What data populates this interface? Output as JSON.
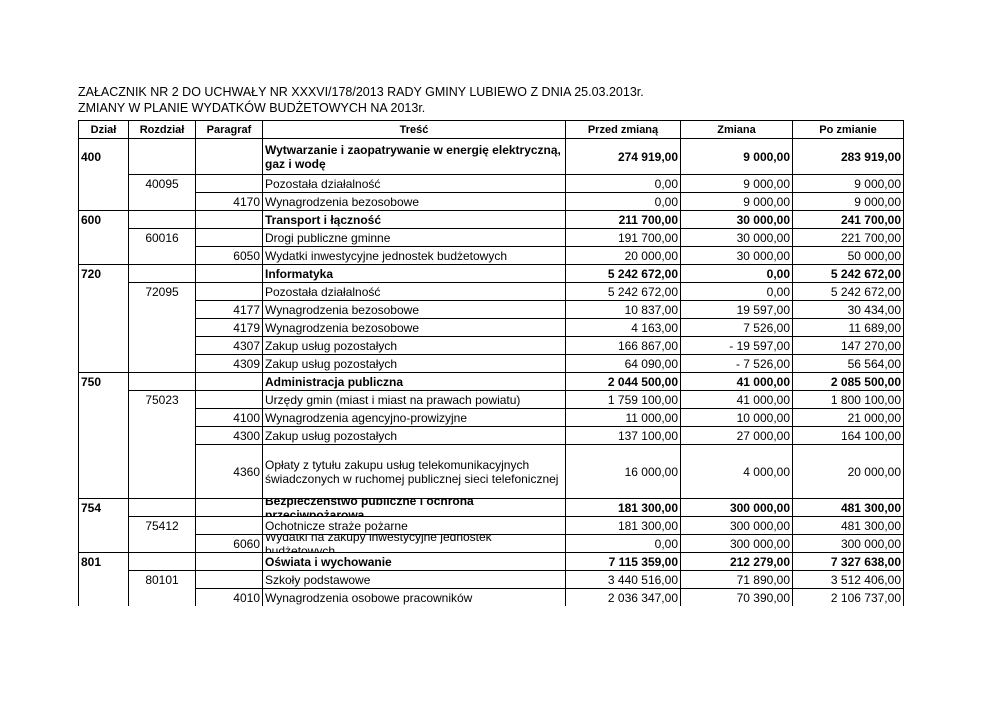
{
  "header": {
    "title": "ZAŁACZNIK NR 2 DO UCHWAŁY NR XXXVI/178/2013 RADY GMINY LUBIEWO Z DNIA 25.03.2013r.",
    "subtitle": "ZMIANY W PLANIE WYDATKÓW BUDŻETOWYCH NA 2013r."
  },
  "table": {
    "columns": [
      "Dział",
      "Rozdział",
      "Paragraf",
      "Treść",
      "Przed zmianą",
      "Zmiana",
      "Po zmianie"
    ],
    "rows": [
      [
        "400",
        "",
        "",
        "Wytwarzanie i zaopatrywanie w energię elektryczną, gaz i wodę",
        "274 919,00",
        "9 000,00",
        "283 919,00"
      ],
      [
        "",
        "40095",
        "",
        "Pozostała działalność",
        "0,00",
        "9 000,00",
        "9 000,00"
      ],
      [
        "",
        "",
        "4170",
        "Wynagrodzenia bezosobowe",
        "0,00",
        "9 000,00",
        "9 000,00"
      ],
      [
        "600",
        "",
        "",
        "Transport i łączność",
        "211 700,00",
        "30 000,00",
        "241 700,00"
      ],
      [
        "",
        "60016",
        "",
        "Drogi publiczne gminne",
        "191 700,00",
        "30 000,00",
        "221 700,00"
      ],
      [
        "",
        "",
        "6050",
        "Wydatki inwestycyjne jednostek budżetowych",
        "20 000,00",
        "30 000,00",
        "50 000,00"
      ],
      [
        "720",
        "",
        "",
        "Informatyka",
        "5 242 672,00",
        "0,00",
        "5 242 672,00"
      ],
      [
        "",
        "72095",
        "",
        "Pozostała działalność",
        "5 242 672,00",
        "0,00",
        "5 242 672,00"
      ],
      [
        "",
        "",
        "4177",
        "Wynagrodzenia bezosobowe",
        "10 837,00",
        "19 597,00",
        "30 434,00"
      ],
      [
        "",
        "",
        "4179",
        "Wynagrodzenia bezosobowe",
        "4 163,00",
        "7 526,00",
        "11 689,00"
      ],
      [
        "",
        "",
        "4307",
        "Zakup usług pozostałych",
        "166 867,00",
        "- 19 597,00",
        "147 270,00"
      ],
      [
        "",
        "",
        "4309",
        "Zakup usług pozostałych",
        "64 090,00",
        "- 7 526,00",
        "56 564,00"
      ],
      [
        "750",
        "",
        "",
        "Administracja publiczna",
        "2 044 500,00",
        "41 000,00",
        "2 085 500,00"
      ],
      [
        "",
        "75023",
        "",
        "Urzędy gmin (miast i miast na prawach powiatu)",
        "1 759 100,00",
        "41 000,00",
        "1 800 100,00"
      ],
      [
        "",
        "",
        "4100",
        "Wynagrodzenia agencyjno-prowizyjne",
        "11 000,00",
        "10 000,00",
        "21 000,00"
      ],
      [
        "",
        "",
        "4300",
        "Zakup usług pozostałych",
        "137 100,00",
        "27 000,00",
        "164 100,00"
      ],
      [
        "",
        "",
        "4360",
        "Opłaty z tytułu zakupu usług telekomunikacyjnych świadczonych w ruchomej publicznej sieci telefonicznej",
        "16 000,00",
        "4 000,00",
        "20 000,00"
      ],
      [
        "754",
        "",
        "",
        "Bezpieczeństwo publiczne i ochrona przeciwpożarowa",
        "181 300,00",
        "300 000,00",
        "481 300,00"
      ],
      [
        "",
        "75412",
        "",
        "Ochotnicze straże pożarne",
        "181 300,00",
        "300 000,00",
        "481 300,00"
      ],
      [
        "",
        "",
        "6060",
        "Wydatki na zakupy inwestycyjne jednostek budżetowych",
        "0,00",
        "300 000,00",
        "300 000,00"
      ],
      [
        "801",
        "",
        "",
        "Oświata i wychowanie",
        "7 115 359,00",
        "212 279,00",
        "7 327 638,00"
      ],
      [
        "",
        "80101",
        "",
        "Szkoły podstawowe",
        "3 440 516,00",
        "71 890,00",
        "3 512 406,00"
      ],
      [
        "",
        "",
        "4010",
        "Wynagrodzenia osobowe pracowników",
        "2 036 347,00",
        "70 390,00",
        "2 106 737,00"
      ]
    ]
  }
}
